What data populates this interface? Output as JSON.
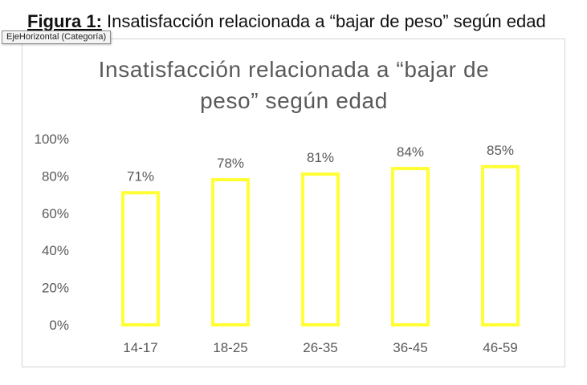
{
  "caption": {
    "label": "Figura 1:",
    "text": " Insatisfacción relacionada a “bajar de peso” según edad"
  },
  "tooltip": {
    "text": "EjeHorizontal (Categoría)"
  },
  "colors": {
    "bar_stroke": "#ffff33",
    "axis_text": "#595959",
    "title_text": "#595959",
    "frame": "#d4d4d4"
  },
  "chart_data": {
    "type": "bar",
    "title_lines": [
      "Insatisfacción relacionada a “bajar de",
      "peso” según edad"
    ],
    "categories": [
      "14-17",
      "18-25",
      "26-35",
      "36-45",
      "46-59"
    ],
    "values": [
      71,
      78,
      81,
      84,
      85
    ],
    "data_labels": [
      "71%",
      "78%",
      "81%",
      "84%",
      "85%"
    ],
    "ylim": [
      0,
      100
    ],
    "yticks": [
      0,
      20,
      40,
      60,
      80,
      100
    ],
    "ytick_labels": [
      "0%",
      "20%",
      "40%",
      "60%",
      "80%",
      "100%"
    ],
    "xlabel": "",
    "ylabel": "",
    "grid": false,
    "legend": "none"
  }
}
